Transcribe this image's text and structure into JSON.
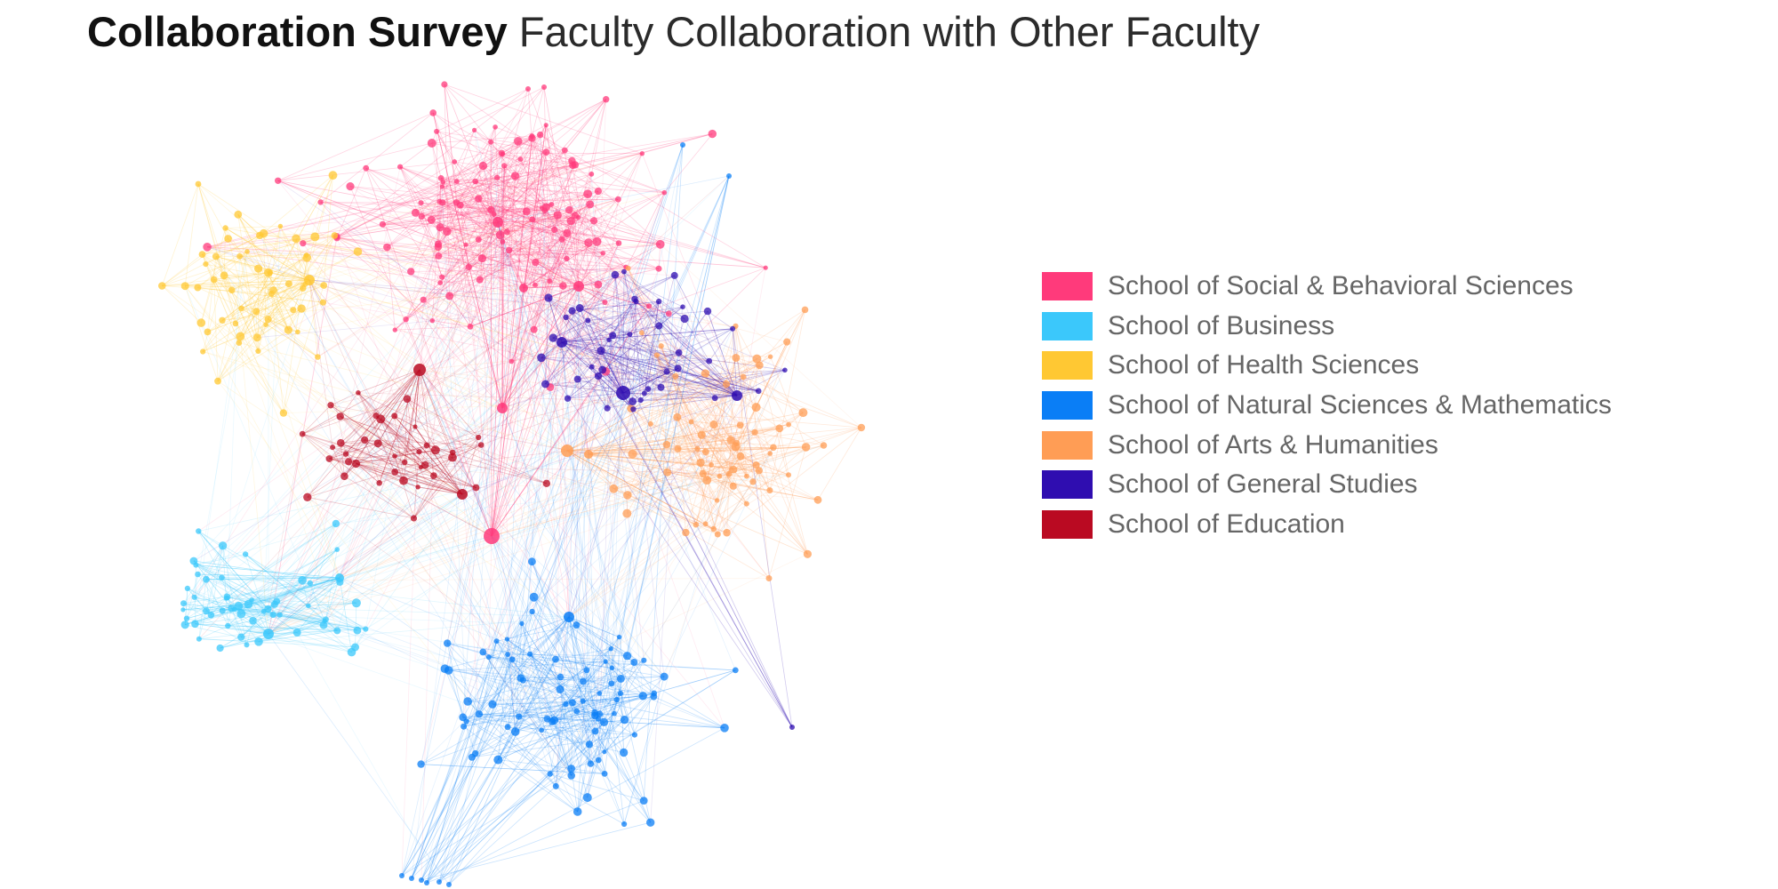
{
  "title": {
    "bold": "Collaboration Survey",
    "light": " Faculty Collaboration with Other Faculty"
  },
  "legend": [
    {
      "label": "School of Social & Behavioral Sciences",
      "color": "#ff3a7b"
    },
    {
      "label": "School of Business",
      "color": "#3bc8fb"
    },
    {
      "label": "School of Health Sciences",
      "color": "#ffc833"
    },
    {
      "label": "School of Natural Sciences & Mathematics",
      "color": "#0a7ef6"
    },
    {
      "label": "School of Arts & Humanities",
      "color": "#ff9d55"
    },
    {
      "label": "School of General Studies",
      "color": "#2f0db0"
    },
    {
      "label": "School of Education",
      "color": "#ba0a22"
    }
  ]
}
